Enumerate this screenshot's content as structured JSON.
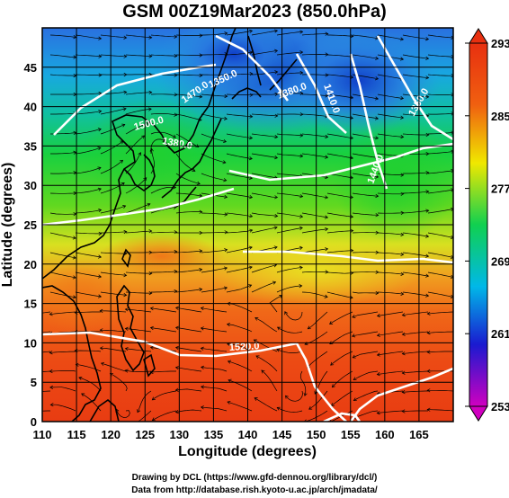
{
  "title": "GSM 00Z19Mar2023 (850.0hPa)",
  "x_axis": {
    "label": "Longitude (degrees)",
    "ticks": [
      "110",
      "115",
      "120",
      "125",
      "130",
      "135",
      "140",
      "145",
      "150",
      "155",
      "160",
      "165"
    ]
  },
  "y_axis": {
    "label": "Latitude  (degrees)",
    "ticks": [
      "0",
      "5",
      "10",
      "15",
      "20",
      "25",
      "30",
      "35",
      "40",
      "45"
    ]
  },
  "colorbar": {
    "ticks": [
      "253",
      "261",
      "269",
      "277",
      "285",
      "293"
    ],
    "colors": [
      "#d000c0",
      "#1a1ad0",
      "#00b8e8",
      "#10d050",
      "#f0e800",
      "#f06010",
      "#e83010"
    ]
  },
  "contour_labels": [
    {
      "text": "1350.0"
    },
    {
      "text": "1380.0"
    },
    {
      "text": "1470.0"
    },
    {
      "text": "1500.0"
    },
    {
      "text": "1410.0"
    },
    {
      "text": "1440.0"
    },
    {
      "text": "1350.0"
    },
    {
      "text": "1380.0"
    },
    {
      "text": "1520.0"
    }
  ],
  "footer": {
    "line1": "Drawing by DCL (https://www.gfd-dennou.org/library/dcl/)",
    "line2": "Data from http://database.rish.kyoto-u.ac.jp/arch/jmadata/"
  }
}
